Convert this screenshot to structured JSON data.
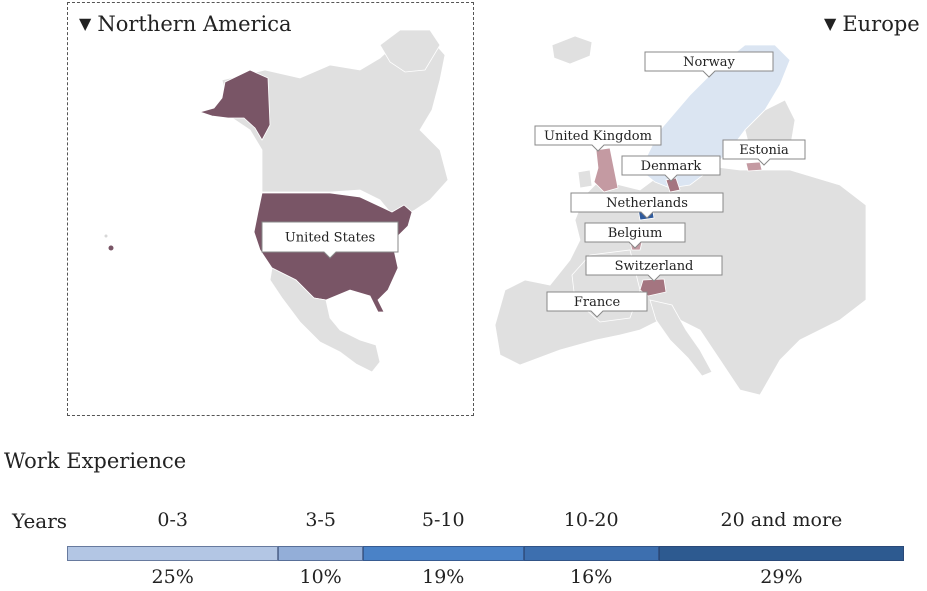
{
  "colors": {
    "land": "#e0e0e0",
    "highlight_dark": "#795566",
    "highlight_mid": "#a47580",
    "highlight_light": "#c49aa2",
    "netherlands": "#2f5a9c",
    "scandinavia_tint": "#dbe5f2",
    "bar_segments": [
      "#b3c6e4",
      "#93aed8",
      "#4a82c7",
      "#3d6faf",
      "#2d5a90"
    ]
  },
  "panels": {
    "northern_america": {
      "title": "Northern America",
      "toggle_icon": "triangle-down-icon"
    },
    "europe": {
      "title": "Europe",
      "toggle_icon": "triangle-down-icon"
    }
  },
  "callouts": {
    "na": [
      {
        "label": "United States"
      }
    ],
    "eu": [
      {
        "label": "Norway"
      },
      {
        "label": "United Kingdom"
      },
      {
        "label": "Denmark"
      },
      {
        "label": "Estonia"
      },
      {
        "label": "Netherlands"
      },
      {
        "label": "Belgium"
      },
      {
        "label": "Switzerland"
      },
      {
        "label": "France"
      }
    ]
  },
  "legend": {
    "title": "Work Experience",
    "axis_label": "Years"
  },
  "chart_data": {
    "type": "bar",
    "orientation": "horizontal-stacked",
    "categories": [
      "0-3",
      "3-5",
      "5-10",
      "10-20",
      "20 and more"
    ],
    "values": [
      25,
      10,
      19,
      16,
      29
    ],
    "value_labels": [
      "25%",
      "10%",
      "19%",
      "16%",
      "29%"
    ],
    "xlabel": "Years"
  }
}
